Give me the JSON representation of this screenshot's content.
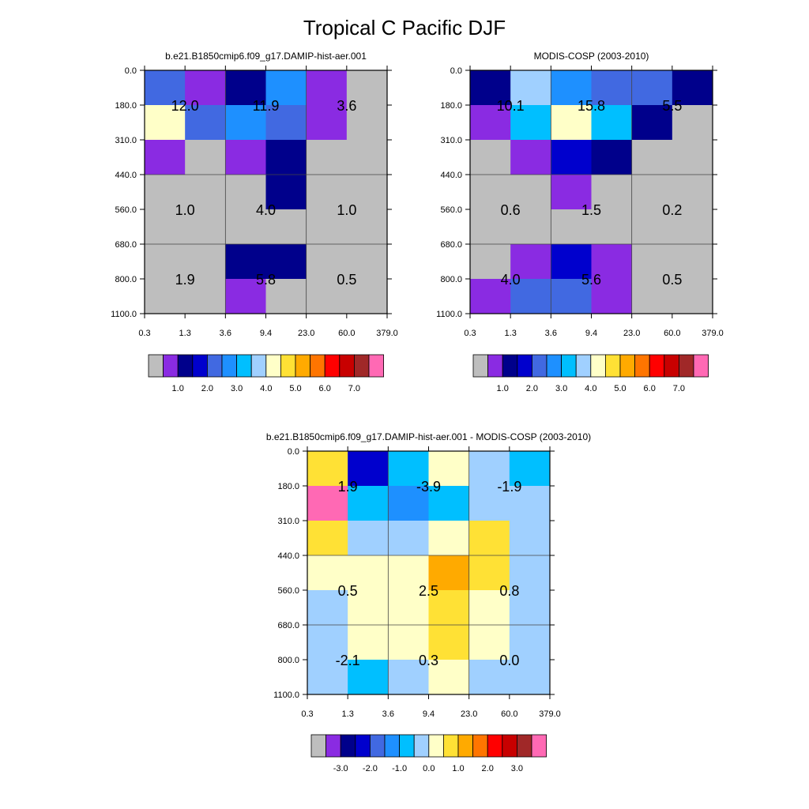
{
  "figure": {
    "title": "Tropical C Pacific DJF"
  },
  "palette": {
    "missing": "#bebebe",
    "levels": [
      "#8a2be2",
      "#00008b",
      "#0000cd",
      "#4169e1",
      "#1e90ff",
      "#00bfff",
      "#a0d0ff",
      "#ffffc8",
      "#ffe135",
      "#ffaa00",
      "#ff7500",
      "#ff0000",
      "#c80000",
      "#a02828",
      "#ff69b4"
    ]
  },
  "chart_data": [
    {
      "type": "heatmap",
      "title": "b.e21.B1850cmip6.f09_g17.DAMIP-hist-aer.001",
      "x_tick_labels": [
        "0.3",
        "1.3",
        "3.6",
        "9.4",
        "23.0",
        "60.0",
        "379.0"
      ],
      "y_tick_labels": [
        "0.0",
        "180.0",
        "310.0",
        "440.0",
        "560.0",
        "680.0",
        "800.0",
        "1100.0"
      ],
      "cells": [
        [
          4,
          1,
          2,
          5,
          1,
          0
        ],
        [
          8,
          4,
          5,
          4,
          1,
          0
        ],
        [
          1,
          0,
          1,
          2,
          0,
          0
        ],
        [
          0,
          0,
          0,
          2,
          0,
          0
        ],
        [
          0,
          0,
          0,
          0,
          0,
          0
        ],
        [
          0,
          0,
          2,
          2,
          0,
          0
        ],
        [
          0,
          0,
          1,
          0,
          0,
          0
        ]
      ],
      "annotations": [
        {
          "x": 1.3,
          "y": 180.0,
          "text": "12.0"
        },
        {
          "x": 9.4,
          "y": 180.0,
          "text": "11.9"
        },
        {
          "x": 60.0,
          "y": 180.0,
          "text": "3.6"
        },
        {
          "x": 1.3,
          "y": 560.0,
          "text": "1.0"
        },
        {
          "x": 9.4,
          "y": 560.0,
          "text": "4.0"
        },
        {
          "x": 60.0,
          "y": 560.0,
          "text": "1.0"
        },
        {
          "x": 1.3,
          "y": 800.0,
          "text": "1.9"
        },
        {
          "x": 9.4,
          "y": 800.0,
          "text": "5.8"
        },
        {
          "x": 60.0,
          "y": 800.0,
          "text": "0.5"
        }
      ],
      "colorbar_labels": [
        "1.0",
        "2.0",
        "3.0",
        "4.0",
        "5.0",
        "6.0",
        "7.0"
      ],
      "grid": true
    },
    {
      "type": "heatmap",
      "title": "MODIS-COSP (2003-2010)",
      "x_tick_labels": [
        "0.3",
        "1.3",
        "3.6",
        "9.4",
        "23.0",
        "60.0",
        "379.0"
      ],
      "y_tick_labels": [
        "0.0",
        "180.0",
        "310.0",
        "440.0",
        "560.0",
        "680.0",
        "800.0",
        "1100.0"
      ],
      "cells": [
        [
          2,
          7,
          5,
          4,
          4,
          2
        ],
        [
          1,
          6,
          8,
          6,
          2,
          0
        ],
        [
          0,
          1,
          3,
          2,
          0,
          0
        ],
        [
          0,
          0,
          1,
          0,
          0,
          0
        ],
        [
          0,
          0,
          0,
          0,
          0,
          0
        ],
        [
          0,
          1,
          3,
          1,
          0,
          0
        ],
        [
          1,
          4,
          4,
          1,
          0,
          0
        ]
      ],
      "annotations": [
        {
          "x": 1.3,
          "y": 180.0,
          "text": "10.1"
        },
        {
          "x": 9.4,
          "y": 180.0,
          "text": "15.8"
        },
        {
          "x": 60.0,
          "y": 180.0,
          "text": "5.5"
        },
        {
          "x": 1.3,
          "y": 560.0,
          "text": "0.6"
        },
        {
          "x": 9.4,
          "y": 560.0,
          "text": "1.5"
        },
        {
          "x": 60.0,
          "y": 560.0,
          "text": "0.2"
        },
        {
          "x": 1.3,
          "y": 800.0,
          "text": "4.0"
        },
        {
          "x": 9.4,
          "y": 800.0,
          "text": "5.6"
        },
        {
          "x": 60.0,
          "y": 800.0,
          "text": "0.5"
        }
      ],
      "colorbar_labels": [
        "1.0",
        "2.0",
        "3.0",
        "4.0",
        "5.0",
        "6.0",
        "7.0"
      ],
      "grid": true
    },
    {
      "type": "heatmap",
      "title": "b.e21.B1850cmip6.f09_g17.DAMIP-hist-aer.001 - MODIS-COSP (2003-2010)",
      "x_tick_labels": [
        "0.3",
        "1.3",
        "3.6",
        "9.4",
        "23.0",
        "60.0",
        "379.0"
      ],
      "y_tick_labels": [
        "0.0",
        "180.0",
        "310.0",
        "440.0",
        "560.0",
        "680.0",
        "800.0",
        "1100.0"
      ],
      "cells": [
        [
          9,
          3,
          6,
          8,
          7,
          6
        ],
        [
          15,
          6,
          5,
          6,
          7,
          7
        ],
        [
          9,
          7,
          7,
          8,
          9,
          7
        ],
        [
          8,
          8,
          8,
          10,
          9,
          7
        ],
        [
          7,
          8,
          8,
          9,
          8,
          7
        ],
        [
          7,
          8,
          8,
          9,
          8,
          7
        ],
        [
          7,
          6,
          7,
          8,
          7,
          7
        ]
      ],
      "annotations": [
        {
          "x": 1.3,
          "y": 180.0,
          "text": "1.9"
        },
        {
          "x": 9.4,
          "y": 180.0,
          "text": "-3.9"
        },
        {
          "x": 60.0,
          "y": 180.0,
          "text": "-1.9"
        },
        {
          "x": 1.3,
          "y": 560.0,
          "text": "0.5"
        },
        {
          "x": 9.4,
          "y": 560.0,
          "text": "2.5"
        },
        {
          "x": 60.0,
          "y": 560.0,
          "text": "0.8"
        },
        {
          "x": 1.3,
          "y": 800.0,
          "text": "-2.1"
        },
        {
          "x": 9.4,
          "y": 800.0,
          "text": "0.3"
        },
        {
          "x": 60.0,
          "y": 800.0,
          "text": "0.0"
        }
      ],
      "colorbar_labels": [
        "-3.0",
        "-2.0",
        "-1.0",
        "0.0",
        "1.0",
        "2.0",
        "3.0"
      ],
      "grid": true
    }
  ]
}
